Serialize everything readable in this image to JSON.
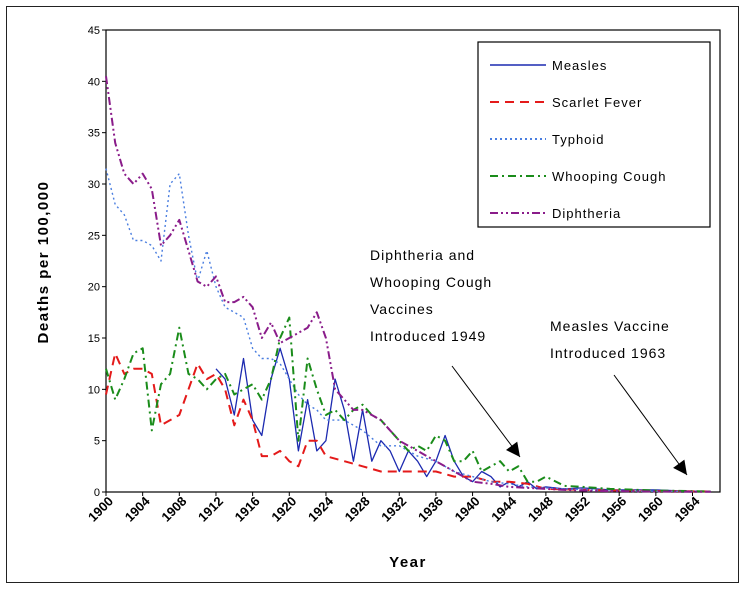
{
  "chart_data": {
    "type": "line",
    "title": "",
    "xlabel": "Year",
    "ylabel": "Deaths per 100,000",
    "xlim": [
      1900,
      1967
    ],
    "ylim": [
      0,
      45
    ],
    "y_ticks": [
      0,
      5,
      10,
      15,
      20,
      25,
      30,
      35,
      40,
      45
    ],
    "x_ticks": [
      1900,
      1904,
      1908,
      1912,
      1916,
      1920,
      1924,
      1928,
      1932,
      1936,
      1940,
      1944,
      1948,
      1952,
      1956,
      1960,
      1964
    ],
    "grid": false,
    "legend_position": "top-right",
    "series": [
      {
        "name": "Measles",
        "color": "#1c2ab0",
        "dash": "solid",
        "points": [
          [
            1912,
            12
          ],
          [
            1913,
            11
          ],
          [
            1914,
            7.5
          ],
          [
            1915,
            13
          ],
          [
            1916,
            7
          ],
          [
            1917,
            5.5
          ],
          [
            1918,
            11
          ],
          [
            1919,
            14
          ],
          [
            1920,
            11
          ],
          [
            1921,
            4
          ],
          [
            1922,
            9
          ],
          [
            1923,
            4
          ],
          [
            1924,
            5
          ],
          [
            1925,
            11
          ],
          [
            1926,
            8
          ],
          [
            1927,
            3
          ],
          [
            1928,
            8
          ],
          [
            1929,
            3
          ],
          [
            1930,
            5
          ],
          [
            1931,
            4
          ],
          [
            1932,
            2
          ],
          [
            1933,
            4
          ],
          [
            1934,
            3
          ],
          [
            1935,
            1.5
          ],
          [
            1936,
            3
          ],
          [
            1937,
            5.5
          ],
          [
            1938,
            3
          ],
          [
            1939,
            1.5
          ],
          [
            1940,
            1
          ],
          [
            1941,
            2
          ],
          [
            1942,
            1.5
          ],
          [
            1943,
            0.5
          ],
          [
            1944,
            1
          ],
          [
            1945,
            0.5
          ],
          [
            1946,
            1
          ],
          [
            1947,
            0.3
          ],
          [
            1948,
            0.5
          ],
          [
            1950,
            0.3
          ],
          [
            1952,
            0.4
          ],
          [
            1955,
            0.2
          ],
          [
            1960,
            0.2
          ],
          [
            1963,
            0.1
          ],
          [
            1966,
            0.05
          ]
        ]
      },
      {
        "name": "Scarlet Fever",
        "color": "#e41a1a",
        "dash": "long-dash",
        "points": [
          [
            1900,
            9.5
          ],
          [
            1901,
            13.5
          ],
          [
            1902,
            11.5
          ],
          [
            1903,
            12
          ],
          [
            1904,
            12
          ],
          [
            1905,
            11.5
          ],
          [
            1906,
            6.5
          ],
          [
            1907,
            7
          ],
          [
            1908,
            7.5
          ],
          [
            1909,
            10
          ],
          [
            1910,
            12.5
          ],
          [
            1911,
            11
          ],
          [
            1912,
            11.5
          ],
          [
            1913,
            10
          ],
          [
            1914,
            6.5
          ],
          [
            1915,
            9
          ],
          [
            1916,
            7
          ],
          [
            1917,
            3.5
          ],
          [
            1918,
            3.5
          ],
          [
            1919,
            4
          ],
          [
            1920,
            3
          ],
          [
            1921,
            2.5
          ],
          [
            1922,
            5
          ],
          [
            1923,
            5
          ],
          [
            1924,
            3.5
          ],
          [
            1926,
            3
          ],
          [
            1928,
            2.5
          ],
          [
            1930,
            2
          ],
          [
            1932,
            2
          ],
          [
            1934,
            2
          ],
          [
            1936,
            2
          ],
          [
            1938,
            1.5
          ],
          [
            1940,
            1.5
          ],
          [
            1942,
            1
          ],
          [
            1944,
            1
          ],
          [
            1946,
            0.8
          ],
          [
            1948,
            0.3
          ],
          [
            1952,
            0.2
          ],
          [
            1960,
            0.1
          ],
          [
            1966,
            0.05
          ]
        ]
      },
      {
        "name": "Typhoid",
        "color": "#4a7ee0",
        "dash": "dotted",
        "points": [
          [
            1900,
            31.5
          ],
          [
            1901,
            28
          ],
          [
            1902,
            27
          ],
          [
            1903,
            24.5
          ],
          [
            1904,
            24.5
          ],
          [
            1905,
            24
          ],
          [
            1906,
            22.5
          ],
          [
            1907,
            30
          ],
          [
            1908,
            31
          ],
          [
            1909,
            25
          ],
          [
            1910,
            20.5
          ],
          [
            1911,
            23.5
          ],
          [
            1912,
            20
          ],
          [
            1913,
            18
          ],
          [
            1914,
            17.5
          ],
          [
            1915,
            17
          ],
          [
            1916,
            14
          ],
          [
            1917,
            13
          ],
          [
            1918,
            13
          ],
          [
            1919,
            12.5
          ],
          [
            1920,
            11
          ],
          [
            1921,
            9.5
          ],
          [
            1922,
            8.5
          ],
          [
            1923,
            8
          ],
          [
            1924,
            7
          ],
          [
            1926,
            7
          ],
          [
            1928,
            6
          ],
          [
            1930,
            4.5
          ],
          [
            1932,
            4.5
          ],
          [
            1934,
            3.5
          ],
          [
            1936,
            3
          ],
          [
            1938,
            2
          ],
          [
            1940,
            1.5
          ],
          [
            1942,
            1
          ],
          [
            1944,
            0.8
          ],
          [
            1946,
            0.5
          ],
          [
            1950,
            0.3
          ],
          [
            1956,
            0.1
          ],
          [
            1966,
            0.05
          ]
        ]
      },
      {
        "name": "Whooping Cough",
        "color": "#1a8c1a",
        "dash": "dash-dot",
        "points": [
          [
            1900,
            12
          ],
          [
            1901,
            9
          ],
          [
            1902,
            11
          ],
          [
            1903,
            13.5
          ],
          [
            1904,
            14
          ],
          [
            1905,
            6
          ],
          [
            1906,
            10.5
          ],
          [
            1907,
            11.5
          ],
          [
            1908,
            16
          ],
          [
            1909,
            11.5
          ],
          [
            1910,
            11
          ],
          [
            1911,
            10
          ],
          [
            1912,
            11
          ],
          [
            1913,
            11.5
          ],
          [
            1914,
            9.5
          ],
          [
            1915,
            10
          ],
          [
            1916,
            10.5
          ],
          [
            1917,
            9
          ],
          [
            1918,
            11
          ],
          [
            1919,
            15
          ],
          [
            1920,
            17
          ],
          [
            1921,
            5
          ],
          [
            1922,
            13
          ],
          [
            1923,
            10
          ],
          [
            1924,
            7.5
          ],
          [
            1925,
            8
          ],
          [
            1926,
            7
          ],
          [
            1927,
            8
          ],
          [
            1928,
            8.5
          ],
          [
            1929,
            7.5
          ],
          [
            1930,
            7
          ],
          [
            1931,
            6
          ],
          [
            1932,
            5
          ],
          [
            1933,
            4
          ],
          [
            1934,
            4.5
          ],
          [
            1935,
            4
          ],
          [
            1936,
            5.5
          ],
          [
            1937,
            5
          ],
          [
            1938,
            3
          ],
          [
            1939,
            3
          ],
          [
            1940,
            4
          ],
          [
            1941,
            2
          ],
          [
            1942,
            2.5
          ],
          [
            1943,
            3
          ],
          [
            1944,
            2
          ],
          [
            1945,
            2.5
          ],
          [
            1946,
            1
          ],
          [
            1947,
            1
          ],
          [
            1948,
            1.5
          ],
          [
            1950,
            0.6
          ],
          [
            1952,
            0.5
          ],
          [
            1955,
            0.3
          ],
          [
            1960,
            0.15
          ],
          [
            1966,
            0.05
          ]
        ]
      },
      {
        "name": "Diphtheria",
        "color": "#8a1c8a",
        "dash": "dash-dot-dot",
        "points": [
          [
            1900,
            40.5
          ],
          [
            1901,
            34
          ],
          [
            1902,
            31
          ],
          [
            1903,
            30
          ],
          [
            1904,
            31
          ],
          [
            1905,
            29.5
          ],
          [
            1906,
            24
          ],
          [
            1907,
            25
          ],
          [
            1908,
            26.5
          ],
          [
            1909,
            23.5
          ],
          [
            1910,
            20.5
          ],
          [
            1911,
            20
          ],
          [
            1912,
            21
          ],
          [
            1913,
            18.5
          ],
          [
            1914,
            18.5
          ],
          [
            1915,
            19
          ],
          [
            1916,
            18
          ],
          [
            1917,
            15
          ],
          [
            1918,
            16.5
          ],
          [
            1919,
            14.5
          ],
          [
            1920,
            15
          ],
          [
            1921,
            15.5
          ],
          [
            1922,
            16
          ],
          [
            1923,
            17.5
          ],
          [
            1924,
            15
          ],
          [
            1925,
            10
          ],
          [
            1926,
            9
          ],
          [
            1927,
            8
          ],
          [
            1928,
            8
          ],
          [
            1929,
            7.5
          ],
          [
            1930,
            7
          ],
          [
            1931,
            6
          ],
          [
            1932,
            5
          ],
          [
            1933,
            4.5
          ],
          [
            1934,
            4
          ],
          [
            1935,
            3.5
          ],
          [
            1936,
            3
          ],
          [
            1937,
            2.5
          ],
          [
            1938,
            2
          ],
          [
            1939,
            1.5
          ],
          [
            1940,
            1
          ],
          [
            1942,
            0.8
          ],
          [
            1944,
            0.5
          ],
          [
            1946,
            0.4
          ],
          [
            1948,
            0.3
          ],
          [
            1950,
            0.2
          ],
          [
            1954,
            0.1
          ],
          [
            1960,
            0.05
          ],
          [
            1966,
            0.02
          ]
        ]
      }
    ],
    "annotations": [
      {
        "lines": [
          "Diphtheria and",
          "Whooping Cough",
          "Vaccines",
          "Introduced 1949"
        ]
      },
      {
        "lines": [
          "Measles Vaccine",
          "Introduced 1963"
        ]
      }
    ]
  }
}
